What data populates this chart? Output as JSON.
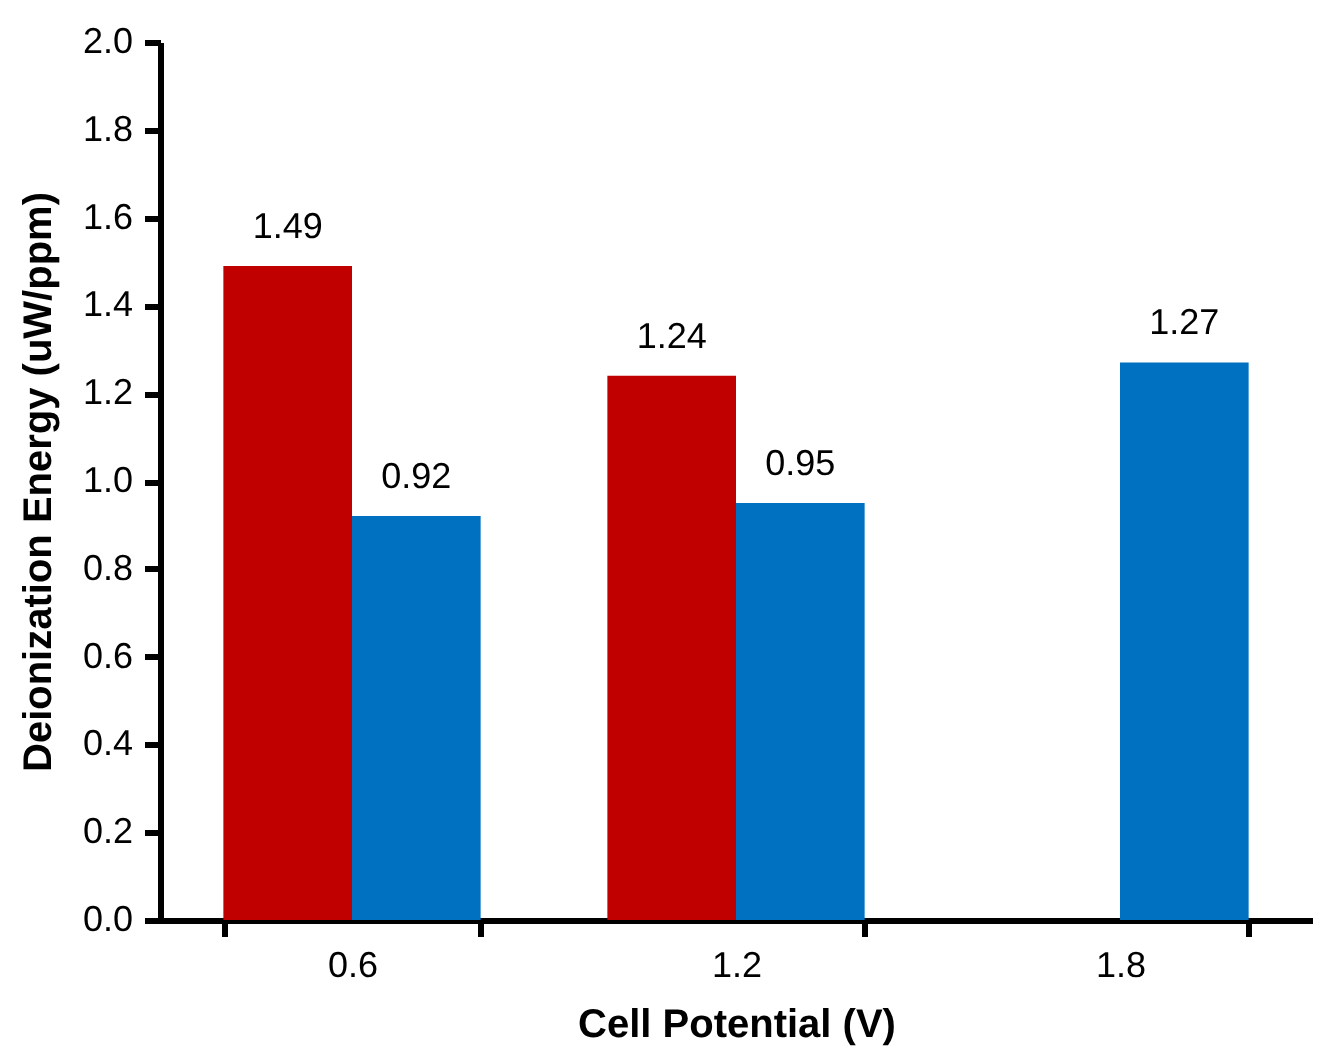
{
  "chart_data": {
    "type": "bar",
    "xlabel": "Cell Potential (V)",
    "ylabel": "Deionization Energy (uW/ppm)",
    "categories": [
      "0.6",
      "1.2",
      "1.8"
    ],
    "series": [
      {
        "color": "#c00000",
        "values": [
          1.49,
          1.24,
          null
        ]
      },
      {
        "color": "#0070c0",
        "values": [
          0.92,
          0.95,
          1.27
        ]
      }
    ],
    "ylim": [
      0,
      2
    ],
    "yticks": [
      {
        "value": 0,
        "label": "0.0"
      },
      {
        "value": 0.2,
        "label": "0.2"
      },
      {
        "value": 0.4,
        "label": "0.4"
      },
      {
        "value": 0.6,
        "label": "0.6"
      },
      {
        "value": 0.8,
        "label": "0.8"
      },
      {
        "value": 1,
        "label": "1.0"
      },
      {
        "value": 1.2,
        "label": "1.2"
      },
      {
        "value": 1.4,
        "label": "1.4"
      },
      {
        "value": 1.6,
        "label": "1.6"
      },
      {
        "value": 1.8,
        "label": "1.8"
      },
      {
        "value": 2,
        "label": "2.0"
      }
    ],
    "grid": false,
    "legend": false,
    "data_labels": true
  }
}
